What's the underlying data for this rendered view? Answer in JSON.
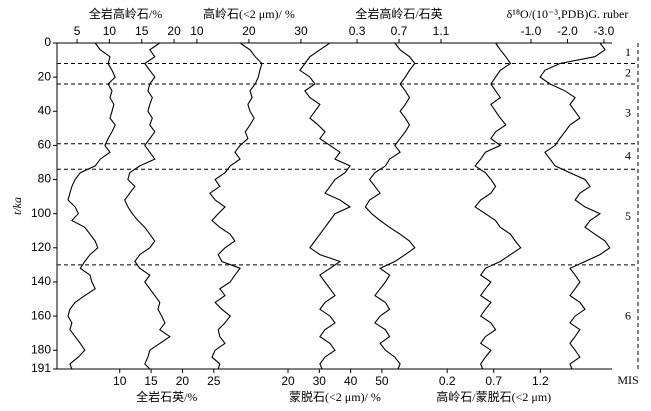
{
  "chart_data": {
    "type": "line",
    "ylabel": "t/ka",
    "ylim": [
      0,
      191
    ],
    "yticks": [
      0,
      20,
      40,
      60,
      80,
      100,
      120,
      140,
      160,
      180,
      191
    ],
    "y": [
      0,
      4,
      8,
      12,
      16,
      20,
      24,
      28,
      32,
      36,
      40,
      44,
      48,
      52,
      56,
      60,
      64,
      68,
      72,
      76,
      80,
      84,
      88,
      92,
      96,
      100,
      104,
      108,
      112,
      116,
      120,
      124,
      128,
      132,
      136,
      140,
      144,
      148,
      152,
      156,
      160,
      164,
      168,
      172,
      176,
      180,
      184,
      188,
      191
    ],
    "color": "#000000",
    "series": [
      {
        "name": "全岩高岭石/%",
        "axis": "top",
        "xlim": [
          1.9,
          87.7
        ],
        "xticks": [
          5,
          10,
          15,
          20
        ],
        "values": [
          7.8,
          8.6,
          10.1,
          9.8,
          10.4,
          10.9,
          9.8,
          10.4,
          10.1,
          10.7,
          10.4,
          10.1,
          10.9,
          10.4,
          9.8,
          9.3,
          10.1,
          8.6,
          7.8,
          5.5,
          4.7,
          4.2,
          3.9,
          3.6,
          4.7,
          5.2,
          4.2,
          6.2,
          7.0,
          7.8,
          8.2,
          7.0,
          6.2,
          5.5,
          7.0,
          7.3,
          7.8,
          6.2,
          4.7,
          3.9,
          3.6,
          4.2,
          3.9,
          4.7,
          5.5,
          6.2,
          5.2,
          3.9,
          4.2
        ]
      },
      {
        "name": "全岩石英/%",
        "axis": "bottom",
        "xlim": [
          0,
          88.5
        ],
        "xticks": [
          10,
          15,
          20,
          25
        ],
        "values": [
          16.4,
          14.8,
          15.6,
          14.0,
          14.8,
          15.6,
          14.8,
          14.5,
          15.2,
          14.8,
          14.5,
          15.2,
          14.8,
          15.6,
          14.8,
          14.0,
          14.8,
          15.6,
          13.2,
          11.6,
          11.3,
          12.4,
          11.6,
          10.8,
          11.3,
          12.0,
          12.9,
          14.0,
          14.8,
          15.6,
          14.8,
          13.2,
          12.4,
          13.2,
          14.8,
          14.0,
          14.8,
          15.6,
          16.4,
          16.1,
          16.7,
          17.2,
          16.4,
          18.0,
          16.4,
          14.8,
          14.5,
          14.0,
          14.8
        ]
      },
      {
        "name": "高岭石(<2 μm)/ %",
        "axis": "top",
        "xlim": [
          -16.9,
          89.8
        ],
        "xticks": [
          10,
          20,
          30
        ],
        "values": [
          18.3,
          20.2,
          21.2,
          22.5,
          22.1,
          21.8,
          21.2,
          20.2,
          20.6,
          19.8,
          20.2,
          21.0,
          20.2,
          19.3,
          19.8,
          18.3,
          17.3,
          18.3,
          16.4,
          15.4,
          13.5,
          14.4,
          12.5,
          13.5,
          15.4,
          14.1,
          12.9,
          14.4,
          16.4,
          17.3,
          15.4,
          14.1,
          14.8,
          18.3,
          17.3,
          16.4,
          14.4,
          15.4,
          13.5,
          14.8,
          16.4,
          15.4,
          14.1,
          14.4,
          15.4,
          13.5,
          12.9,
          14.4,
          14.1
        ]
      },
      {
        "name": "蒙脱石(<2 μm)/ %",
        "axis": "bottom",
        "xlim": [
          -53.8,
          123.5
        ],
        "xticks": [
          20,
          30,
          40,
          50
        ],
        "values": [
          33.4,
          30.2,
          27.0,
          25.4,
          23.8,
          27.0,
          28.6,
          25.4,
          27.0,
          30.2,
          28.6,
          27.0,
          29.6,
          31.8,
          30.2,
          33.4,
          36.6,
          35.0,
          39.8,
          38.2,
          35.0,
          33.4,
          31.8,
          36.6,
          39.8,
          35.0,
          33.4,
          31.8,
          30.2,
          28.6,
          27.0,
          30.2,
          36.6,
          33.4,
          30.2,
          31.8,
          33.4,
          35.0,
          31.8,
          30.2,
          33.4,
          35.0,
          31.8,
          30.2,
          33.4,
          35.0,
          31.8,
          30.2,
          30.9
        ]
      },
      {
        "name": "全岩高岭石/石英",
        "axis": "top",
        "xlim": [
          -2.56,
          2.73
        ],
        "xticks": [
          0.3,
          0.7,
          1.1
        ],
        "values": [
          0.66,
          0.71,
          0.8,
          0.85,
          0.8,
          0.76,
          0.71,
          0.76,
          0.8,
          0.76,
          0.71,
          0.76,
          0.8,
          0.76,
          0.71,
          0.66,
          0.71,
          0.61,
          0.57,
          0.47,
          0.42,
          0.47,
          0.52,
          0.42,
          0.38,
          0.44,
          0.52,
          0.61,
          0.71,
          0.8,
          0.85,
          0.76,
          0.66,
          0.52,
          0.61,
          0.57,
          0.52,
          0.47,
          0.57,
          0.61,
          0.52,
          0.47,
          0.57,
          0.61,
          0.52,
          0.57,
          0.66,
          0.71,
          0.69
        ]
      },
      {
        "name": "高岭石/蒙脱石(<2 μm)",
        "axis": "bottom",
        "xlim": [
          -3.99,
          1.97
        ],
        "xticks": [
          0.2,
          0.7,
          1.2
        ],
        "values": [
          0.72,
          0.77,
          0.83,
          0.88,
          0.77,
          0.72,
          0.67,
          0.72,
          0.77,
          0.67,
          0.72,
          0.77,
          0.83,
          0.72,
          0.67,
          0.77,
          0.61,
          0.56,
          0.5,
          0.61,
          0.67,
          0.72,
          0.67,
          0.56,
          0.5,
          0.61,
          0.72,
          0.77,
          0.88,
          0.93,
          0.99,
          0.88,
          0.77,
          0.61,
          0.56,
          0.67,
          0.61,
          0.56,
          0.67,
          0.61,
          0.56,
          0.67,
          0.72,
          0.61,
          0.56,
          0.67,
          0.61,
          0.56,
          0.58
        ]
      },
      {
        "name": "δ¹⁸O/(10⁻³,PDB)G. ruber",
        "axis": "top",
        "xlim": [
          11.99,
          -3.22
        ],
        "xticks": [
          {
            "value": -1,
            "label": "-1.0"
          },
          {
            "value": -2,
            "label": "-2.0"
          },
          {
            "value": -3,
            "label": "-3.0"
          }
        ],
        "values": [
          -2.89,
          -3.03,
          -2.75,
          -1.79,
          -1.38,
          -1.25,
          -1.52,
          -1.93,
          -2.21,
          -2.07,
          -2.21,
          -2.34,
          -2.07,
          -1.93,
          -1.79,
          -1.66,
          -1.38,
          -1.52,
          -1.66,
          -2.07,
          -2.48,
          -2.62,
          -2.34,
          -2.21,
          -2.48,
          -2.89,
          -2.62,
          -2.48,
          -2.75,
          -3.03,
          -3.16,
          -2.89,
          -2.48,
          -2.07,
          -2.21,
          -2.34,
          -2.21,
          -2.07,
          -2.34,
          -2.48,
          -2.21,
          -2.07,
          -2.34,
          -2.21,
          -2.07,
          -2.21,
          -2.34,
          -2.07,
          -2.12
        ]
      }
    ],
    "mis": {
      "label": "MIS",
      "stages": [
        "1",
        "2",
        "3",
        "4",
        "5",
        "6"
      ],
      "boundaries": [
        0,
        12,
        24,
        59,
        74,
        130,
        191
      ]
    }
  }
}
